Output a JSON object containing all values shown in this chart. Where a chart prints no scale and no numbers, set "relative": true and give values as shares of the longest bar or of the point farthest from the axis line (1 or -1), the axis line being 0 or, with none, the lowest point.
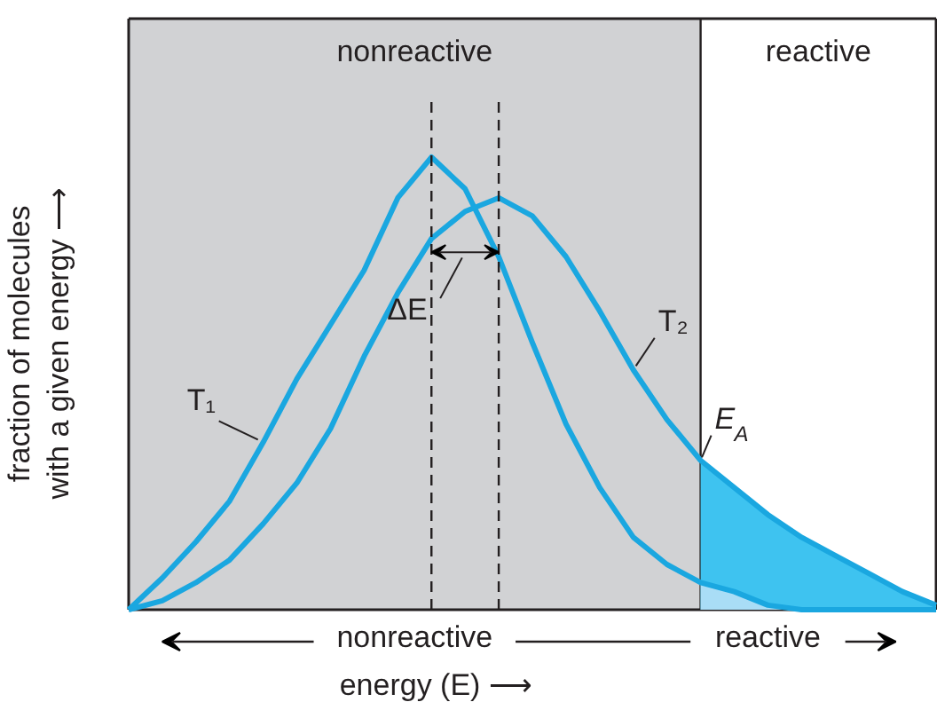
{
  "chart_data": {
    "type": "line",
    "relative": true,
    "xlabel": "energy (E) ⟶",
    "ylabel": "fraction of molecules\nwith a given energy ⟶",
    "categories": [
      null,
      null,
      null,
      null,
      null,
      null,
      null,
      null,
      null,
      null,
      null,
      null,
      null,
      null,
      null,
      null,
      null,
      null,
      null,
      null,
      null,
      null,
      null,
      null,
      null
    ],
    "series": [
      {
        "color": "#1aa7e0",
        "line_style": "solid",
        "values": [
          0,
          0.07,
          0.15,
          0.24,
          0.37,
          0.51,
          0.63,
          0.75,
          0.91,
          1.0,
          0.93,
          0.78,
          0.59,
          0.41,
          0.27,
          0.16,
          0.1,
          0.06,
          0.04,
          0.01,
          0,
          0,
          0,
          0,
          0
        ]
      },
      {
        "color": "#1aa7e0",
        "line_style": "solid",
        "values": [
          0,
          0.02,
          0.06,
          0.11,
          0.19,
          0.28,
          0.4,
          0.56,
          0.7,
          0.82,
          0.88,
          0.91,
          0.87,
          0.78,
          0.66,
          0.53,
          0.42,
          0.33,
          0.27,
          0.21,
          0.16,
          0.12,
          0.08,
          0.04,
          0.01
        ]
      },
      {
        "type": "area",
        "color": "#3ec3f0",
        "values": [
          null,
          null,
          null,
          null,
          null,
          null,
          null,
          null,
          null,
          null,
          null,
          null,
          null,
          null,
          null,
          null,
          null,
          0.33,
          0.27,
          0.21,
          0.16,
          0.12,
          0.08,
          0.04,
          0.01
        ]
      },
      {
        "type": "area",
        "color": "#a9ddf6",
        "values": [
          null,
          null,
          null,
          null,
          null,
          null,
          null,
          null,
          null,
          null,
          null,
          null,
          null,
          null,
          null,
          null,
          null,
          0.06,
          0.04,
          0.01,
          0,
          null,
          null,
          null,
          null
        ]
      }
    ],
    "annotations": [
      "nonreactive",
      "reactive",
      "T₁",
      "T₂",
      "ΔE",
      "E$_{A}$",
      "nonreactive",
      "reactive"
    ]
  }
}
